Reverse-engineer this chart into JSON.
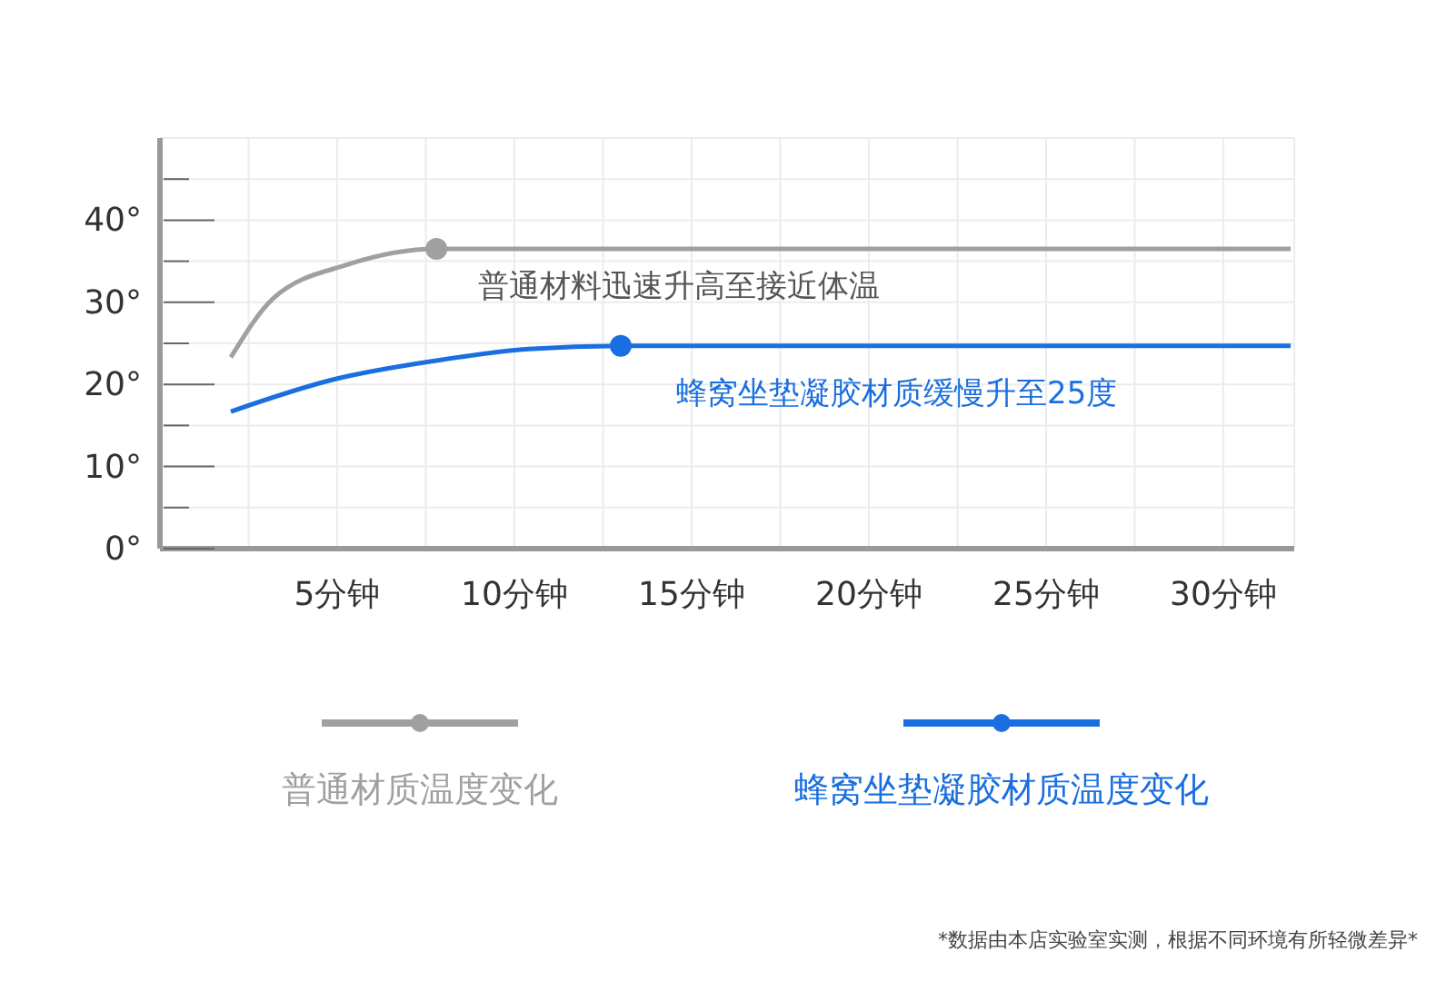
{
  "chart_data": {
    "type": "line",
    "xlim": [
      0,
      32
    ],
    "ylim": [
      0,
      50
    ],
    "xticks": [
      {
        "value": 2.5,
        "label": null
      },
      {
        "value": 5,
        "label": "5分钟"
      },
      {
        "value": 7.5,
        "label": null
      },
      {
        "value": 10,
        "label": "10分钟"
      },
      {
        "value": 12.5,
        "label": null
      },
      {
        "value": 15,
        "label": "15分钟"
      },
      {
        "value": 17.5,
        "label": null
      },
      {
        "value": 20,
        "label": "20分钟"
      },
      {
        "value": 22.5,
        "label": null
      },
      {
        "value": 25,
        "label": "25分钟"
      },
      {
        "value": 27.5,
        "label": null
      },
      {
        "value": 30,
        "label": "30分钟"
      }
    ],
    "yticks": [
      {
        "value": 0,
        "label": "0°"
      },
      {
        "value": 5,
        "label": null
      },
      {
        "value": 10,
        "label": "10°"
      },
      {
        "value": 15,
        "label": null
      },
      {
        "value": 20,
        "label": "20°"
      },
      {
        "value": 25,
        "label": null
      },
      {
        "value": 30,
        "label": "30°"
      },
      {
        "value": 35,
        "label": null
      },
      {
        "value": 40,
        "label": "40°"
      },
      {
        "value": 45,
        "label": null
      }
    ],
    "grid": true,
    "legend": "bottom",
    "line_style": "solid",
    "marker": "none",
    "series": [
      {
        "name": "普通材质温度变化",
        "color": "#a0a0a0",
        "x": [
          2,
          3.2,
          5.3,
          7.8,
          31.9
        ],
        "values": [
          23.3,
          30.5,
          34.6,
          36.5,
          36.5
        ]
      },
      {
        "name": "蜂窝坐垫凝胶材质温度变化",
        "color": "#1a6fe0",
        "x": [
          2,
          4.9,
          7.8,
          10.4,
          13,
          31.9
        ],
        "values": [
          16.7,
          20.6,
          22.9,
          24.3,
          24.7,
          24.7
        ]
      },
      {
        "type": "scatter",
        "color": "#a0a0a0",
        "marker": "circle",
        "x": [
          7.8
        ],
        "values": [
          36.5
        ]
      },
      {
        "type": "scatter",
        "color": "#1a6fe0",
        "marker": "circle",
        "x": [
          13
        ],
        "values": [
          24.7
        ]
      }
    ],
    "annotations": [
      "普通材料迅速升高至接近体温",
      "蜂窝坐垫凝胶材质缓慢升至25度",
      "*数据由本店实验室实测，根据不同环境有所轻微差异*"
    ]
  }
}
